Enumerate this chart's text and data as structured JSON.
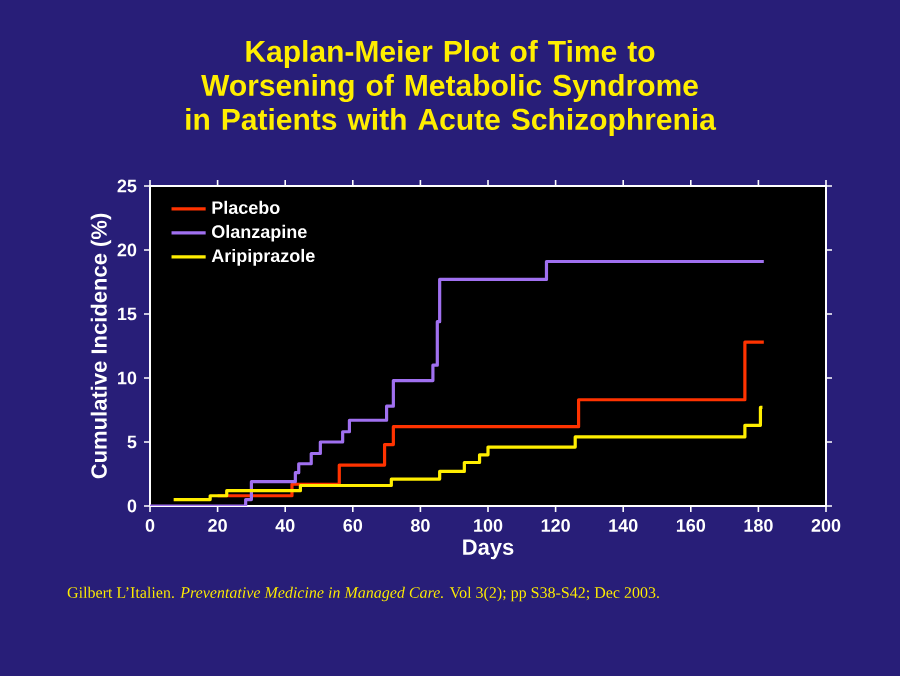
{
  "chart_data": {
    "type": "step",
    "title": "Kaplan-Meier Plot of Time to Worsening of Metabolic Syndrome in Patients with Acute Schizophrenia",
    "xlabel": "Days",
    "ylabel": "Cumulative Incidence (%)",
    "xlim": [
      0,
      200
    ],
    "ylim": [
      0,
      25
    ],
    "xticks": [
      0,
      20,
      40,
      60,
      80,
      100,
      120,
      140,
      160,
      180,
      200
    ],
    "yticks": [
      0,
      5,
      10,
      15,
      20,
      25
    ],
    "legend": "top left",
    "series": [
      {
        "name": "Placebo",
        "color": "#ff3300",
        "x": [
          20,
          42,
          56,
          69.4,
          72,
          126.8,
          176,
          181.6
        ],
        "values": [
          0.8,
          1.7,
          3.2,
          4.8,
          6.2,
          8.3,
          12.8,
          12.8
        ]
      },
      {
        "name": "Olanzapine",
        "color": "#a070f0",
        "x": [
          0,
          28.3,
          30,
          43,
          44,
          47.7,
          50.4,
          57,
          59,
          70,
          72,
          83.7,
          85,
          85.7,
          117.3,
          181.6
        ],
        "values": [
          0,
          0.5,
          1.9,
          2.6,
          3.3,
          4.1,
          5.0,
          5.8,
          6.7,
          7.8,
          9.8,
          11.0,
          14.4,
          17.7,
          19.1,
          19.1
        ]
      },
      {
        "name": "Aripiprazole",
        "color": "#ffee00",
        "x": [
          7,
          17.8,
          22.7,
          44.5,
          71.4,
          85.7,
          93,
          97.5,
          100,
          125.8,
          176,
          180.6,
          181.2
        ],
        "values": [
          0.5,
          0.8,
          1.2,
          1.6,
          2.1,
          2.7,
          3.4,
          4.0,
          4.6,
          5.4,
          6.3,
          7.7,
          7.7
        ]
      }
    ],
    "annotations": [
      "Gilbert L’Italien. *Preventative Medicine in Managed Care.* Vol 3(2); pp S38-S42; Dec 2003."
    ]
  }
}
